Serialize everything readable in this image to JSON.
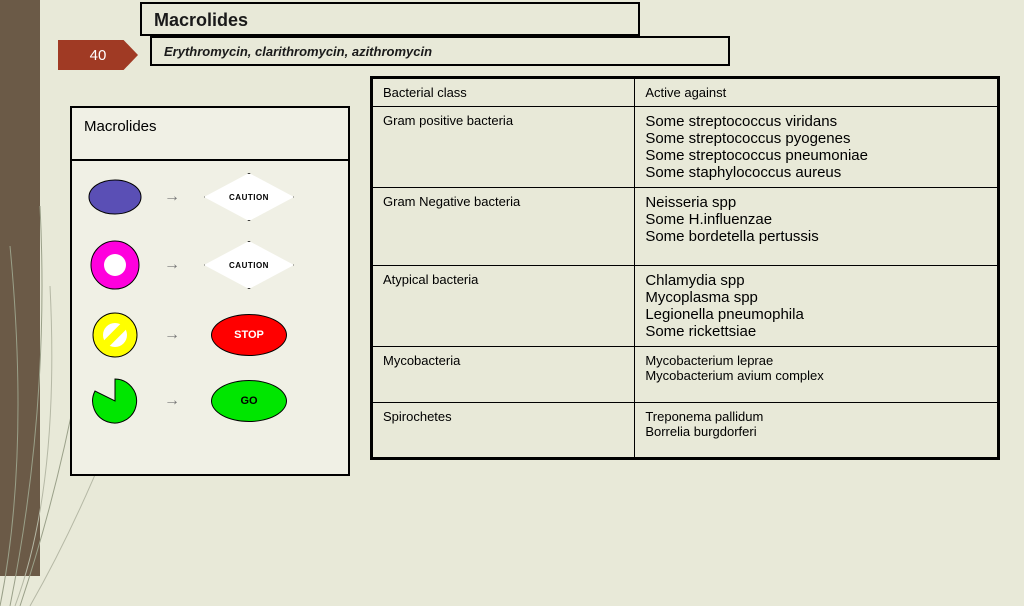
{
  "slide_number": "40",
  "title_main": "Macrolides",
  "title_sub": "Erythromycin, clarithromycin, azithromycin",
  "card": {
    "header": "Macrolides",
    "rows": [
      {
        "shape": "purple-oval",
        "sign": "caution",
        "sign_label": "CAUTION"
      },
      {
        "shape": "magenta-ring",
        "sign": "caution",
        "sign_label": "CAUTION"
      },
      {
        "shape": "yellow-nosymbol",
        "sign": "stop",
        "sign_label": "STOP"
      },
      {
        "shape": "green-pac",
        "sign": "go",
        "sign_label": "GO"
      }
    ]
  },
  "table": {
    "headers": [
      "Bacterial class",
      "Active against"
    ],
    "rows": [
      {
        "class": "Gram positive bacteria",
        "against": "Some streptococcus viridans\nSome streptococcus pyogenes\nSome streptococcus pneumoniae\nSome staphylococcus aureus",
        "big": true
      },
      {
        "class": "Gram Negative bacteria",
        "against": "Neisseria spp\nSome H.influenzae\nSome bordetella pertussis",
        "big": true
      },
      {
        "class": "Atypical bacteria",
        "against": "Chlamydia spp\nMycoplasma spp\nLegionella pneumophila\nSome rickettsiae",
        "big": true
      },
      {
        "class": "Mycobacteria",
        "against": "Mycobacterium leprae\nMycobacterium avium complex",
        "big": false
      },
      {
        "class": "Spirochetes",
        "against": "Treponema pallidum\nBorrelia burgdorferi",
        "big": false
      }
    ]
  },
  "colors": {
    "bg": "#e8e9d8",
    "stripe": "#6b5a47",
    "slide_tag": "#a03a24",
    "purple": "#5a4fb5",
    "magenta": "#ff00dd",
    "yellow": "#ffff00",
    "green": "#00e600",
    "red": "#ff0000"
  }
}
